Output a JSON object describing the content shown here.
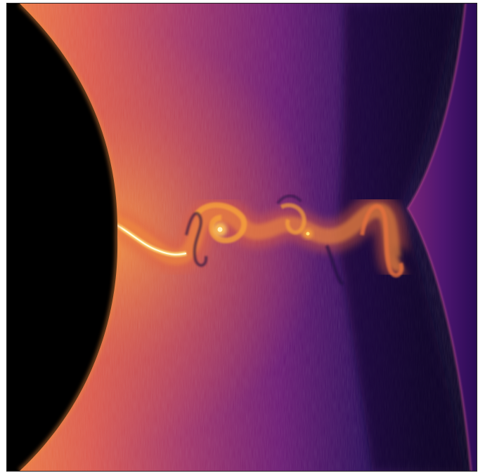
{
  "image": {
    "subject": "simulation-density-field",
    "colormap": "inferno",
    "palette": {
      "black": "#000000",
      "deep_purple": "#1a0a3a",
      "purple": "#3d1163",
      "magenta": "#8a2a6e",
      "pink": "#c23d5c",
      "orange": "#e66a3c",
      "amber": "#f7a23a",
      "yellow": "#fde27a",
      "white_hot": "#fffbe0"
    }
  }
}
